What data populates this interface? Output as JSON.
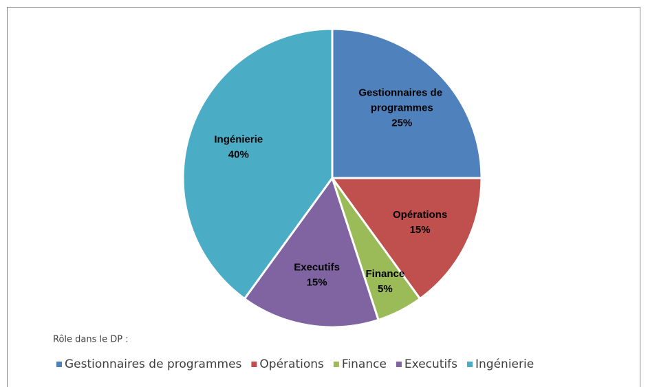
{
  "chart_data": {
    "type": "pie",
    "categories": [
      "Gestionnaires de programmes",
      "Opérations",
      "Finance",
      "Executifs",
      "Ingénierie"
    ],
    "values": [
      25,
      15,
      5,
      15,
      40
    ],
    "value_labels": [
      "25%",
      "15%",
      "5%",
      "15%",
      "40%"
    ],
    "colors": [
      "#4f81bd",
      "#c0504d",
      "#9bbb59",
      "#8064a2",
      "#4bacc6"
    ],
    "legend_title": "Rôle dans le DP :",
    "legend": "bottom"
  }
}
